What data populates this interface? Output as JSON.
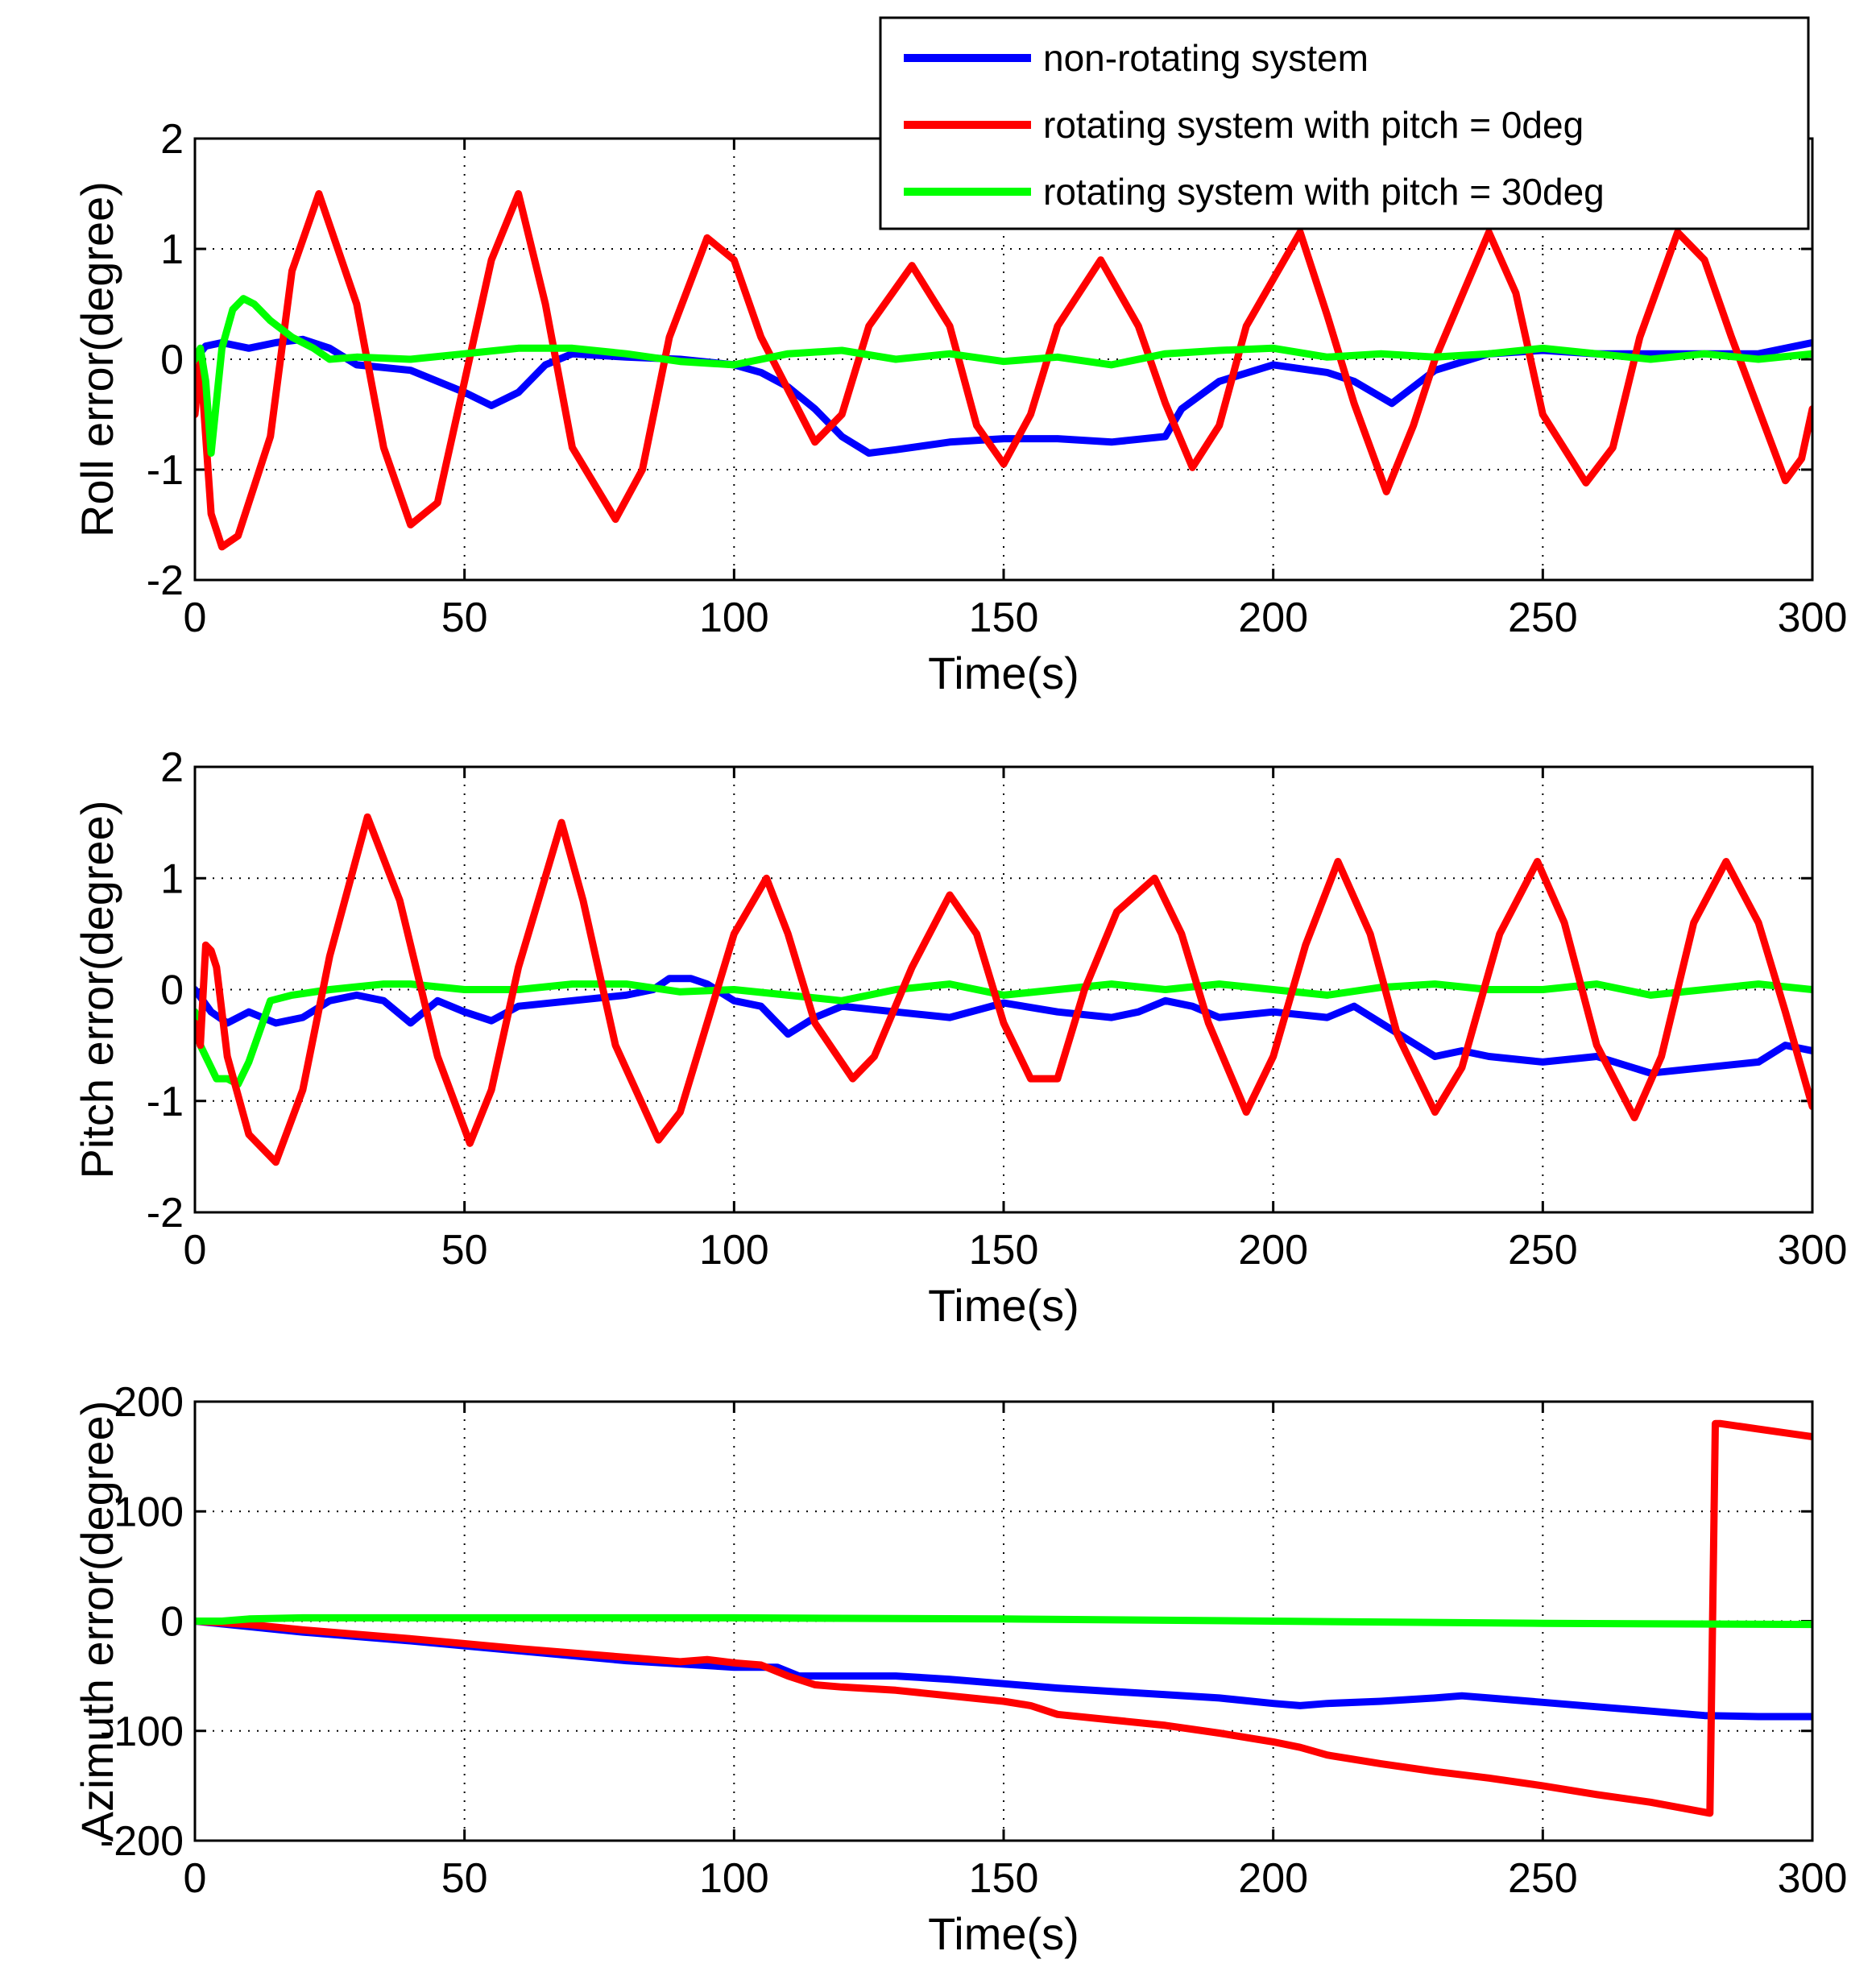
{
  "colors": {
    "blue": "#0000ff",
    "red": "#ff0000",
    "green": "#00ff00"
  },
  "legend": {
    "placement": "top-right",
    "entries": [
      {
        "label": "non-rotating system",
        "color": "#0000ff"
      },
      {
        "label": "rotating system with pitch = 0deg",
        "color": "#ff0000"
      },
      {
        "label": "rotating system with pitch = 30deg",
        "color": "#00ff00"
      }
    ]
  },
  "chart_data": [
    {
      "type": "line",
      "xlabel": "Time(s)",
      "ylabel": "Roll error(degree)",
      "xlim": [
        0,
        300
      ],
      "ylim": [
        -2,
        2
      ],
      "xticks": [
        0,
        50,
        100,
        150,
        200,
        250,
        300
      ],
      "yticks": [
        -2,
        -1,
        0,
        1,
        2
      ],
      "grid": true,
      "series": [
        {
          "name": "non-rotating system",
          "color": "#0000ff",
          "x": [
            0,
            2,
            5,
            10,
            15,
            20,
            25,
            30,
            40,
            50,
            55,
            60,
            65,
            70,
            80,
            90,
            100,
            105,
            110,
            115,
            120,
            125,
            130,
            140,
            150,
            160,
            170,
            180,
            183,
            190,
            200,
            210,
            215,
            222,
            230,
            240,
            250,
            260,
            270,
            280,
            290,
            300
          ],
          "y": [
            0,
            0.12,
            0.15,
            0.1,
            0.15,
            0.18,
            0.1,
            -0.05,
            -0.1,
            -0.3,
            -0.42,
            -0.3,
            -0.05,
            0.05,
            0.02,
            0,
            -0.05,
            -0.12,
            -0.25,
            -0.45,
            -0.7,
            -0.85,
            -0.82,
            -0.75,
            -0.72,
            -0.72,
            -0.75,
            -0.7,
            -0.45,
            -0.2,
            -0.05,
            -0.12,
            -0.2,
            -0.4,
            -0.1,
            0.05,
            0.08,
            0.05,
            0.05,
            0.05,
            0.05,
            0.15
          ]
        },
        {
          "name": "rotating system with pitch = 0deg",
          "color": "#ff0000",
          "x": [
            0,
            1,
            2,
            3,
            5,
            8,
            14,
            18,
            23,
            30,
            35,
            40,
            45,
            50,
            55,
            60,
            65,
            70,
            78,
            83,
            88,
            95,
            100,
            105,
            115,
            120,
            125,
            133,
            140,
            145,
            150,
            155,
            160,
            168,
            175,
            180,
            185,
            190,
            195,
            205,
            210,
            215,
            221,
            226,
            230,
            240,
            245,
            250,
            258,
            263,
            268,
            275,
            280,
            285,
            295,
            298,
            300
          ],
          "y": [
            -0.5,
            0,
            -0.7,
            -1.4,
            -1.7,
            -1.6,
            -0.7,
            0.8,
            1.5,
            0.5,
            -0.8,
            -1.5,
            -1.3,
            -0.2,
            0.9,
            1.5,
            0.5,
            -0.8,
            -1.45,
            -1,
            0.2,
            1.1,
            0.9,
            0.2,
            -0.75,
            -0.5,
            0.3,
            0.85,
            0.3,
            -0.6,
            -0.95,
            -0.5,
            0.3,
            0.9,
            0.3,
            -0.4,
            -0.98,
            -0.6,
            0.3,
            1.15,
            0.4,
            -0.4,
            -1.2,
            -0.6,
            0,
            1.15,
            0.6,
            -0.5,
            -1.12,
            -0.8,
            0.2,
            1.15,
            0.9,
            0.2,
            -1.1,
            -0.9,
            -0.45
          ]
        },
        {
          "name": "rotating system with pitch = 30deg",
          "color": "#00ff00",
          "x": [
            0,
            1,
            2,
            3,
            5,
            7,
            9,
            11,
            14,
            18,
            22,
            25,
            30,
            40,
            50,
            60,
            70,
            80,
            90,
            100,
            110,
            120,
            130,
            140,
            150,
            160,
            170,
            180,
            190,
            200,
            210,
            220,
            230,
            240,
            250,
            260,
            270,
            280,
            290,
            300
          ],
          "y": [
            0,
            0.1,
            -0.2,
            -0.85,
            0.1,
            0.45,
            0.55,
            0.5,
            0.35,
            0.2,
            0.1,
            0,
            0.02,
            0,
            0.05,
            0.1,
            0.1,
            0.05,
            -0.02,
            -0.05,
            0.05,
            0.08,
            0,
            0.05,
            -0.02,
            0.02,
            -0.05,
            0.05,
            0.08,
            0.1,
            0.02,
            0.05,
            0.02,
            0.05,
            0.1,
            0.05,
            0,
            0.05,
            0,
            0.05
          ]
        }
      ]
    },
    {
      "type": "line",
      "xlabel": "Time(s)",
      "ylabel": "Pitch error(degree)",
      "xlim": [
        0,
        300
      ],
      "ylim": [
        -2,
        2
      ],
      "xticks": [
        0,
        50,
        100,
        150,
        200,
        250,
        300
      ],
      "yticks": [
        -2,
        -1,
        0,
        1,
        2
      ],
      "grid": true,
      "series": [
        {
          "name": "non-rotating system",
          "color": "#0000ff",
          "x": [
            0,
            3,
            6,
            10,
            15,
            20,
            25,
            30,
            35,
            40,
            45,
            50,
            55,
            60,
            70,
            80,
            85,
            88,
            92,
            95,
            100,
            105,
            110,
            115,
            120,
            130,
            140,
            150,
            160,
            170,
            175,
            180,
            185,
            190,
            200,
            210,
            215,
            220,
            225,
            230,
            235,
            240,
            250,
            260,
            270,
            280,
            290,
            295,
            300
          ],
          "y": [
            0,
            -0.2,
            -0.3,
            -0.2,
            -0.3,
            -0.25,
            -0.1,
            -0.05,
            -0.1,
            -0.3,
            -0.1,
            -0.2,
            -0.28,
            -0.15,
            -0.1,
            -0.05,
            0,
            0.1,
            0.1,
            0.05,
            -0.1,
            -0.15,
            -0.4,
            -0.25,
            -0.15,
            -0.2,
            -0.25,
            -0.12,
            -0.2,
            -0.25,
            -0.2,
            -0.1,
            -0.15,
            -0.25,
            -0.2,
            -0.25,
            -0.15,
            -0.3,
            -0.45,
            -0.6,
            -0.55,
            -0.6,
            -0.65,
            -0.6,
            -0.75,
            -0.7,
            -0.65,
            -0.5,
            -0.55
          ]
        },
        {
          "name": "rotating system with pitch = 30deg",
          "color": "#00ff00",
          "x": [
            0,
            1,
            2,
            4,
            6,
            8,
            10,
            14,
            18,
            25,
            35,
            40,
            50,
            60,
            70,
            80,
            90,
            100,
            110,
            120,
            130,
            140,
            150,
            160,
            170,
            180,
            190,
            200,
            210,
            220,
            230,
            240,
            250,
            260,
            270,
            280,
            290,
            300
          ],
          "y": [
            -0.2,
            -0.5,
            -0.6,
            -0.8,
            -0.8,
            -0.85,
            -0.65,
            -0.1,
            -0.05,
            0,
            0.05,
            0.05,
            0,
            0,
            0.05,
            0.05,
            -0.02,
            0,
            -0.05,
            -0.1,
            0,
            0.05,
            -0.05,
            0,
            0.05,
            0,
            0.05,
            0,
            -0.05,
            0.02,
            0.05,
            0,
            0,
            0.05,
            -0.05,
            0,
            0.05,
            0
          ]
        },
        {
          "name": "rotating system with pitch = 0deg",
          "color": "#ff0000",
          "x": [
            0,
            1,
            2,
            3,
            4,
            6,
            10,
            15,
            20,
            25,
            32,
            38,
            45,
            51,
            55,
            60,
            68,
            72,
            78,
            86,
            90,
            95,
            100,
            106,
            110,
            115,
            122,
            126,
            133,
            140,
            145,
            150,
            155,
            160,
            165,
            171,
            178,
            183,
            188,
            195,
            200,
            206,
            212,
            218,
            223,
            230,
            235,
            242,
            249,
            254,
            260,
            267,
            272,
            278,
            284,
            290,
            295,
            300
          ],
          "y": [
            -0.3,
            -0.5,
            0.4,
            0.35,
            0.2,
            -0.6,
            -1.3,
            -1.55,
            -0.9,
            0.3,
            1.55,
            0.8,
            -0.6,
            -1.38,
            -0.9,
            0.2,
            1.5,
            0.8,
            -0.5,
            -1.35,
            -1.1,
            -0.3,
            0.5,
            1.0,
            0.5,
            -0.3,
            -0.8,
            -0.6,
            0.2,
            0.85,
            0.5,
            -0.3,
            -0.8,
            -0.8,
            0,
            0.7,
            1.0,
            0.5,
            -0.3,
            -1.1,
            -0.6,
            0.4,
            1.15,
            0.5,
            -0.4,
            -1.1,
            -0.7,
            0.5,
            1.15,
            0.6,
            -0.5,
            -1.15,
            -0.6,
            0.6,
            1.15,
            0.6,
            -0.2,
            -1.05
          ]
        }
      ]
    },
    {
      "type": "line",
      "xlabel": "Time(s)",
      "ylabel": "Azimuth error(degree)",
      "xlim": [
        0,
        300
      ],
      "ylim": [
        -200,
        200
      ],
      "xticks": [
        0,
        50,
        100,
        150,
        200,
        250,
        300
      ],
      "yticks": [
        -200,
        -100,
        0,
        100,
        200
      ],
      "grid": true,
      "series": [
        {
          "name": "non-rotating system",
          "color": "#0000ff",
          "x": [
            0,
            10,
            20,
            40,
            60,
            80,
            100,
            108,
            112,
            120,
            130,
            140,
            150,
            160,
            170,
            180,
            190,
            200,
            205,
            210,
            220,
            230,
            235,
            240,
            250,
            260,
            270,
            280,
            290,
            300
          ],
          "y": [
            0,
            -5,
            -10,
            -18,
            -27,
            -36,
            -42,
            -42,
            -50,
            -50,
            -50,
            -53,
            -57,
            -61,
            -64,
            -67,
            -70,
            -75,
            -77,
            -75,
            -73,
            -70,
            -68,
            -70,
            -74,
            -78,
            -82,
            -86,
            -87,
            -87
          ]
        },
        {
          "name": "rotating system with pitch = 0deg",
          "color": "#ff0000",
          "x": [
            0,
            10,
            20,
            40,
            60,
            80,
            90,
            95,
            100,
            105,
            110,
            115,
            120,
            130,
            140,
            150,
            155,
            160,
            170,
            180,
            190,
            200,
            205,
            210,
            220,
            230,
            240,
            250,
            260,
            270,
            281,
            282,
            283,
            290,
            300
          ],
          "y": [
            0,
            -3,
            -8,
            -16,
            -25,
            -33,
            -37,
            -35,
            -38,
            -40,
            -50,
            -58,
            -60,
            -63,
            -68,
            -73,
            -77,
            -85,
            -90,
            -95,
            -102,
            -110,
            -115,
            -122,
            -130,
            -137,
            -143,
            -150,
            -158,
            -165,
            -175,
            180,
            180,
            175,
            168
          ]
        },
        {
          "name": "rotating system with pitch = 30deg",
          "color": "#00ff00",
          "x": [
            0,
            5,
            10,
            20,
            50,
            100,
            150,
            200,
            250,
            300
          ],
          "y": [
            0,
            0,
            2,
            3,
            3,
            3,
            2,
            0,
            -2,
            -3
          ]
        }
      ]
    }
  ]
}
